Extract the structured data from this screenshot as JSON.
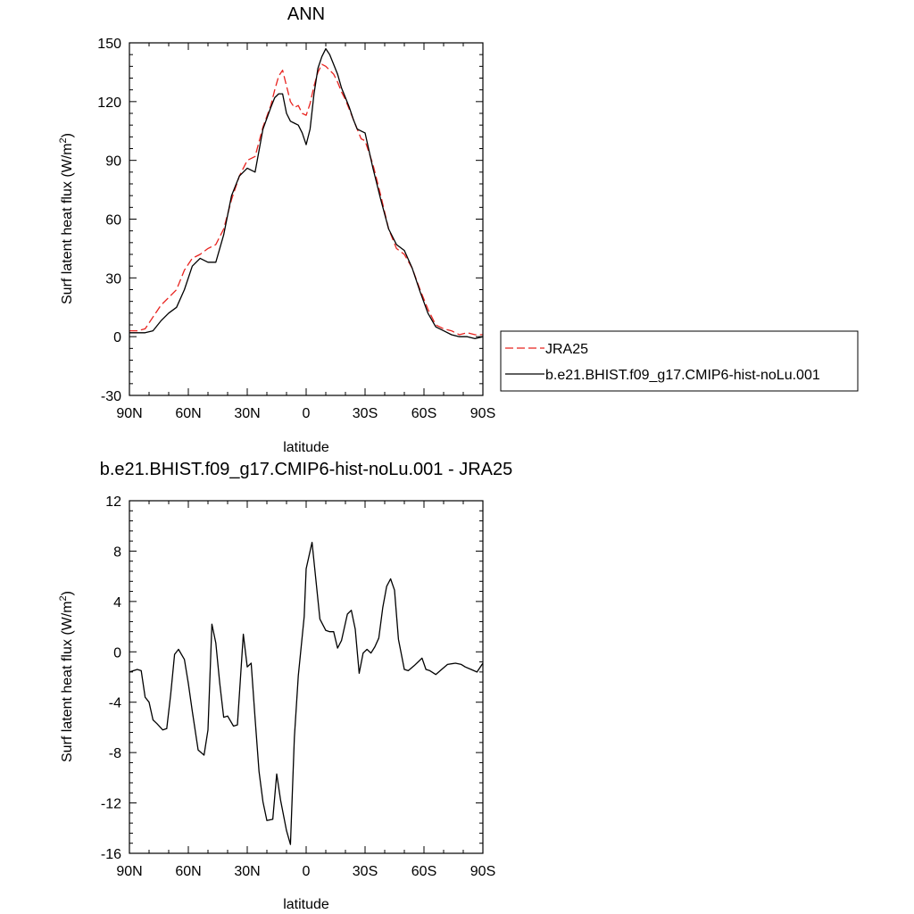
{
  "chart_data": [
    {
      "type": "line",
      "title": "ANN",
      "xlabel": "latitude",
      "ylabel": "Surf latent heat flux (W/m",
      "ylabel_sup": "2",
      "ylabel_end": ")",
      "xlim": [
        90,
        -90
      ],
      "ylim": [
        -30,
        150
      ],
      "x_ticks": [
        90,
        60,
        30,
        0,
        -30,
        -60,
        -90
      ],
      "x_tick_labels": [
        "90N",
        "60N",
        "30N",
        "0",
        "30S",
        "60S",
        "90S"
      ],
      "y_ticks": [
        -30,
        0,
        30,
        60,
        90,
        120,
        150
      ],
      "y_tick_labels": [
        "-30",
        "0",
        "30",
        "60",
        "90",
        "120",
        "150"
      ],
      "legend": {
        "placement": "right, outside plot",
        "entries": [
          {
            "label": "JRA25",
            "color": "#e8231f",
            "dash": "dashed"
          },
          {
            "label": "b.e21.BHIST.f09_g17.CMIP6-hist-noLu.001",
            "color": "#000000",
            "dash": "solid"
          }
        ]
      },
      "series": [
        {
          "name": "JRA25",
          "color": "#e8231f",
          "dash": "dashed",
          "x": [
            90,
            86,
            82,
            78,
            74,
            70,
            66,
            62,
            58,
            54,
            50,
            46,
            42,
            38,
            34,
            30,
            26,
            22,
            18,
            16,
            14,
            12,
            10,
            8,
            6,
            4,
            2,
            0,
            -2,
            -4,
            -6,
            -8,
            -10,
            -12,
            -14,
            -16,
            -18,
            -20,
            -22,
            -24,
            -26,
            -28,
            -30,
            -34,
            -38,
            -42,
            -46,
            -50,
            -54,
            -58,
            -62,
            -66,
            -70,
            -74,
            -78,
            -82,
            -86,
            -90
          ],
          "y": [
            3,
            3,
            4,
            10,
            16,
            20,
            24,
            34,
            40,
            42,
            45,
            47,
            55,
            70,
            82,
            90,
            92,
            107,
            118,
            126,
            133,
            136,
            128,
            120,
            117,
            118,
            114,
            113,
            119,
            128,
            135,
            139,
            138,
            136,
            134,
            130,
            125,
            121,
            116,
            111,
            106,
            101,
            100,
            88,
            72,
            55,
            45,
            42,
            35,
            24,
            14,
            6,
            4,
            3,
            1,
            2,
            1,
            1
          ]
        },
        {
          "name": "b.e21.BHIST.f09_g17.CMIP6-hist-noLu.001",
          "color": "#000000",
          "dash": "solid",
          "x": [
            90,
            86,
            82,
            78,
            74,
            70,
            66,
            62,
            58,
            54,
            50,
            46,
            42,
            38,
            34,
            30,
            26,
            22,
            18,
            16,
            14,
            12,
            10,
            8,
            6,
            4,
            2,
            0,
            -2,
            -4,
            -6,
            -8,
            -10,
            -12,
            -14,
            -16,
            -18,
            -20,
            -22,
            -24,
            -26,
            -28,
            -30,
            -34,
            -38,
            -42,
            -46,
            -50,
            -54,
            -58,
            -62,
            -66,
            -70,
            -74,
            -78,
            -82,
            -86,
            -90
          ],
          "y": [
            2,
            2,
            2,
            3,
            8,
            12,
            15,
            24,
            36,
            40,
            38,
            38,
            52,
            72,
            82,
            86,
            84,
            106,
            117,
            122,
            124,
            124,
            114,
            110,
            109,
            108,
            104,
            98,
            106,
            124,
            137,
            143,
            147,
            144,
            139,
            134,
            127,
            122,
            117,
            111,
            106,
            105,
            104,
            86,
            70,
            55,
            47,
            44,
            35,
            23,
            12,
            5,
            3,
            1,
            0,
            0,
            -1,
            0
          ]
        }
      ]
    },
    {
      "type": "line",
      "title": "b.e21.BHIST.f09_g17.CMIP6-hist-noLu.001 - JRA25",
      "xlabel": "latitude",
      "ylabel": "Surf latent heat flux (W/m",
      "ylabel_sup": "2",
      "ylabel_end": ")",
      "xlim": [
        90,
        -90
      ],
      "ylim": [
        -16,
        12
      ],
      "x_ticks": [
        90,
        60,
        30,
        0,
        -30,
        -60,
        -90
      ],
      "x_tick_labels": [
        "90N",
        "60N",
        "30N",
        "0",
        "30S",
        "60S",
        "90S"
      ],
      "y_ticks": [
        -16,
        -12,
        -8,
        -4,
        0,
        4,
        8,
        12
      ],
      "y_tick_labels": [
        "-16",
        "-12",
        "-8",
        "-4",
        "0",
        "4",
        "8",
        "12"
      ],
      "series": [
        {
          "color": "#000000",
          "dash": "solid",
          "x": [
            90,
            86,
            84,
            82,
            80,
            78,
            76,
            73,
            71,
            69,
            67,
            65,
            62,
            60,
            58,
            55,
            52,
            50,
            48,
            46,
            44,
            42,
            40,
            37,
            35,
            32,
            30,
            28,
            26,
            24,
            22,
            20,
            17,
            15,
            13,
            10,
            8,
            6,
            4,
            1,
            0,
            -3,
            -7,
            -10,
            -12,
            -14,
            -16,
            -18,
            -21,
            -23,
            -25,
            -27,
            -29,
            -31,
            -33,
            -35,
            -37,
            -39,
            -41,
            -43,
            -45,
            -47,
            -50,
            -52,
            -55,
            -57,
            -59,
            -61,
            -63,
            -66,
            -69,
            -72,
            -76,
            -79,
            -81,
            -84,
            -87,
            -90
          ],
          "y": [
            -1.6,
            -1.4,
            -1.5,
            -3.6,
            -4.0,
            -5.4,
            -5.7,
            -6.2,
            -6.1,
            -3.4,
            -0.2,
            0.2,
            -0.6,
            -2.5,
            -4.7,
            -7.8,
            -8.2,
            -6.2,
            2.2,
            0.7,
            -2.5,
            -5.2,
            -5.1,
            -5.9,
            -5.8,
            1.4,
            -1.2,
            -0.9,
            -5.3,
            -9.5,
            -11.9,
            -13.4,
            -13.3,
            -9.7,
            -11.8,
            -14.2,
            -15.3,
            -6.8,
            -1.9,
            2.8,
            6.6,
            8.7,
            2.6,
            1.7,
            1.6,
            1.6,
            0.3,
            0.9,
            3.0,
            3.3,
            1.8,
            -1.7,
            -0.1,
            0.2,
            -0.1,
            0.4,
            1.1,
            3.5,
            5.2,
            5.8,
            4.9,
            1.0,
            -1.4,
            -1.5,
            -1.1,
            -0.8,
            -0.5,
            -1.4,
            -1.5,
            -1.8,
            -1.4,
            -1.0,
            -0.9,
            -1.0,
            -1.2,
            -1.4,
            -1.6,
            -0.9
          ]
        }
      ]
    }
  ]
}
